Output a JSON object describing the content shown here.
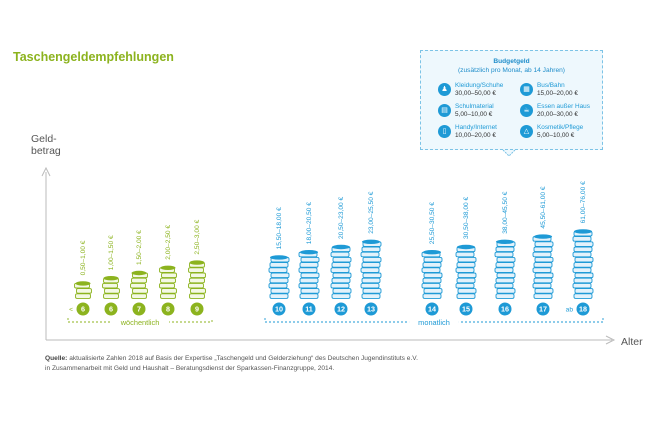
{
  "title": "Taschengeldempfehlungen",
  "ylabel_line1": "Geld-",
  "ylabel_line2": "betrag",
  "xlabel": "Alter",
  "source_label": "Quelle:",
  "source_line1": "aktualisierte Zahlen 2018 auf Basis der Expertise „Taschengeld und Gelderziehung“ des Deutschen Jugendinstituts e.V.",
  "source_line2": "in Zusammenarbeit mit Geld und Haushalt – Beratungsdienst der Sparkassen-Finanzgruppe, 2014.",
  "budget": {
    "title": "Budgetgeld",
    "subtitle": "(zusätzlich pro Monat, ab 14 Jahren)",
    "items": [
      {
        "name": "Kleidung/Schuhe",
        "value": "30,00–50,00 €",
        "icon": "shirt-icon"
      },
      {
        "name": "Bus/Bahn",
        "value": "15,00–20,00 €",
        "icon": "bus-icon"
      },
      {
        "name": "Schulmaterial",
        "value": "5,00–10,00 €",
        "icon": "notebook-icon"
      },
      {
        "name": "Essen außer Haus",
        "value": "20,00–30,00 €",
        "icon": "food-icon"
      },
      {
        "name": "Handy/Internet",
        "value": "10,00–20,00 €",
        "icon": "phone-icon"
      },
      {
        "name": "Kosmetik/Pflege",
        "value": "5,00–10,00 €",
        "icon": "cosmetics-icon"
      }
    ]
  },
  "colors": {
    "green": "#8cb31e",
    "blue": "#1e9ad6",
    "light_blue": "#7cc3e6",
    "text": "#555555"
  },
  "chart_data": {
    "type": "bar",
    "title": "Taschengeldempfehlungen",
    "ylabel": "Geldbetrag",
    "xlabel": "Alter",
    "groups": [
      {
        "name": "wöchentlich",
        "range": "weekly",
        "points": [
          {
            "age": "6",
            "prefix": "<",
            "label": "0,50–1,00 €",
            "min": 0.5,
            "max": 1.0
          },
          {
            "age": "6",
            "prefix": "",
            "label": "1,00–1,50 €",
            "min": 1.0,
            "max": 1.5
          },
          {
            "age": "7",
            "prefix": "",
            "label": "1,50–2,00 €",
            "min": 1.5,
            "max": 2.0
          },
          {
            "age": "8",
            "prefix": "",
            "label": "2,00–2,50 €",
            "min": 2.0,
            "max": 2.5
          },
          {
            "age": "9",
            "prefix": "",
            "label": "2,50–3,00 €",
            "min": 2.5,
            "max": 3.0
          }
        ]
      },
      {
        "name": "monatlich",
        "range": "monthly",
        "points": [
          {
            "age": "10",
            "prefix": "",
            "label": "15,50–18,00 €",
            "min": 15.5,
            "max": 18.0
          },
          {
            "age": "11",
            "prefix": "",
            "label": "18,00–20,50 €",
            "min": 18.0,
            "max": 20.5
          },
          {
            "age": "12",
            "prefix": "",
            "label": "20,50–23,00 €",
            "min": 20.5,
            "max": 23.0
          },
          {
            "age": "13",
            "prefix": "",
            "label": "23,00–25,50 €",
            "min": 23.0,
            "max": 25.5
          },
          {
            "age": "14",
            "prefix": "",
            "label": "25,50–30,50 €",
            "min": 25.5,
            "max": 30.5
          },
          {
            "age": "15",
            "prefix": "",
            "label": "30,50–38,00 €",
            "min": 30.5,
            "max": 38.0
          },
          {
            "age": "16",
            "prefix": "",
            "label": "38,00–45,50 €",
            "min": 38.0,
            "max": 45.5
          },
          {
            "age": "17",
            "prefix": "",
            "label": "45,50–61,00 €",
            "min": 45.5,
            "max": 61.0
          },
          {
            "age": "18",
            "prefix": "ab",
            "label": "61,00–76,00 €",
            "min": 61.0,
            "max": 76.0
          }
        ]
      }
    ],
    "coin_counts": [
      3,
      4,
      5,
      6,
      7,
      8,
      9,
      10,
      11,
      9,
      10,
      11,
      12,
      13
    ]
  }
}
